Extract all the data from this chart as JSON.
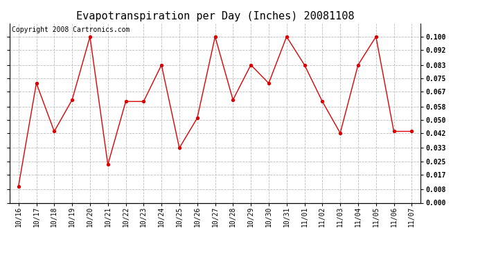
{
  "title": "Evapotranspiration per Day (Inches) 20081108",
  "copyright_text": "Copyright 2008 Cartronics.com",
  "x_labels": [
    "10/16",
    "10/17",
    "10/18",
    "10/19",
    "10/20",
    "10/21",
    "10/22",
    "10/23",
    "10/24",
    "10/25",
    "10/26",
    "10/27",
    "10/28",
    "10/29",
    "10/30",
    "10/31",
    "11/01",
    "11/02",
    "11/03",
    "11/04",
    "11/05",
    "11/06",
    "11/07"
  ],
  "y_values": [
    0.01,
    0.072,
    0.043,
    0.062,
    0.1,
    0.023,
    0.061,
    0.061,
    0.083,
    0.033,
    0.051,
    0.1,
    0.062,
    0.083,
    0.072,
    0.1,
    0.083,
    0.061,
    0.042,
    0.083,
    0.1,
    0.043,
    0.043
  ],
  "line_color": "#dd0000",
  "marker_color": "#dd0000",
  "background_color": "#ffffff",
  "plot_bg_color": "#ffffff",
  "grid_color": "#bbbbbb",
  "ylim_min": 0.0,
  "ylim_max": 0.108,
  "yticks": [
    0.0,
    0.008,
    0.017,
    0.025,
    0.033,
    0.042,
    0.05,
    0.058,
    0.067,
    0.075,
    0.083,
    0.092,
    0.1
  ],
  "title_fontsize": 11,
  "copyright_fontsize": 7,
  "tick_fontsize": 7,
  "left_tick_labels": false
}
